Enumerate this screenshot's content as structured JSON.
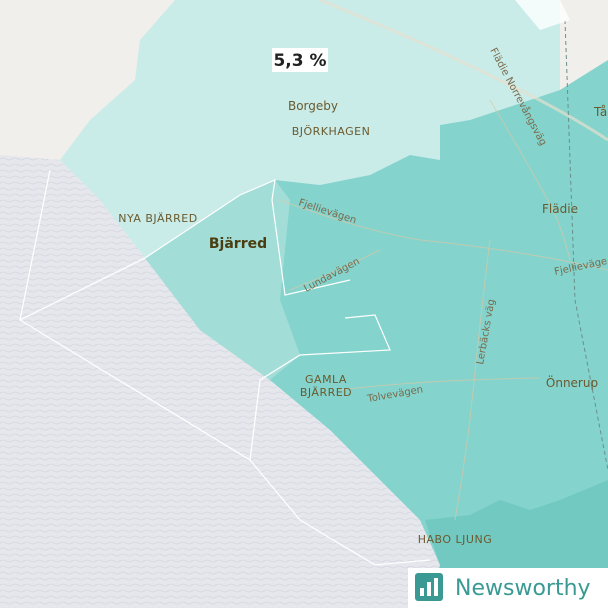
{
  "map": {
    "value_label": "5,3 %",
    "places": [
      "Borgeby",
      "BJÖRKHAGEN",
      "NYA BJÄRRED",
      "Bjärred",
      "Flädie",
      "Önnerup",
      "GAMLA BJÄRRED",
      "HABO LJUNG",
      "Tå"
    ],
    "roads": [
      "Fjellievägen",
      "Lundavägen",
      "Flädie Norrevångsväg",
      "Fjellieväge",
      "Lerbäcks väg",
      "Tolvevägen"
    ]
  },
  "logo": {
    "text": "Newsworthy"
  }
}
